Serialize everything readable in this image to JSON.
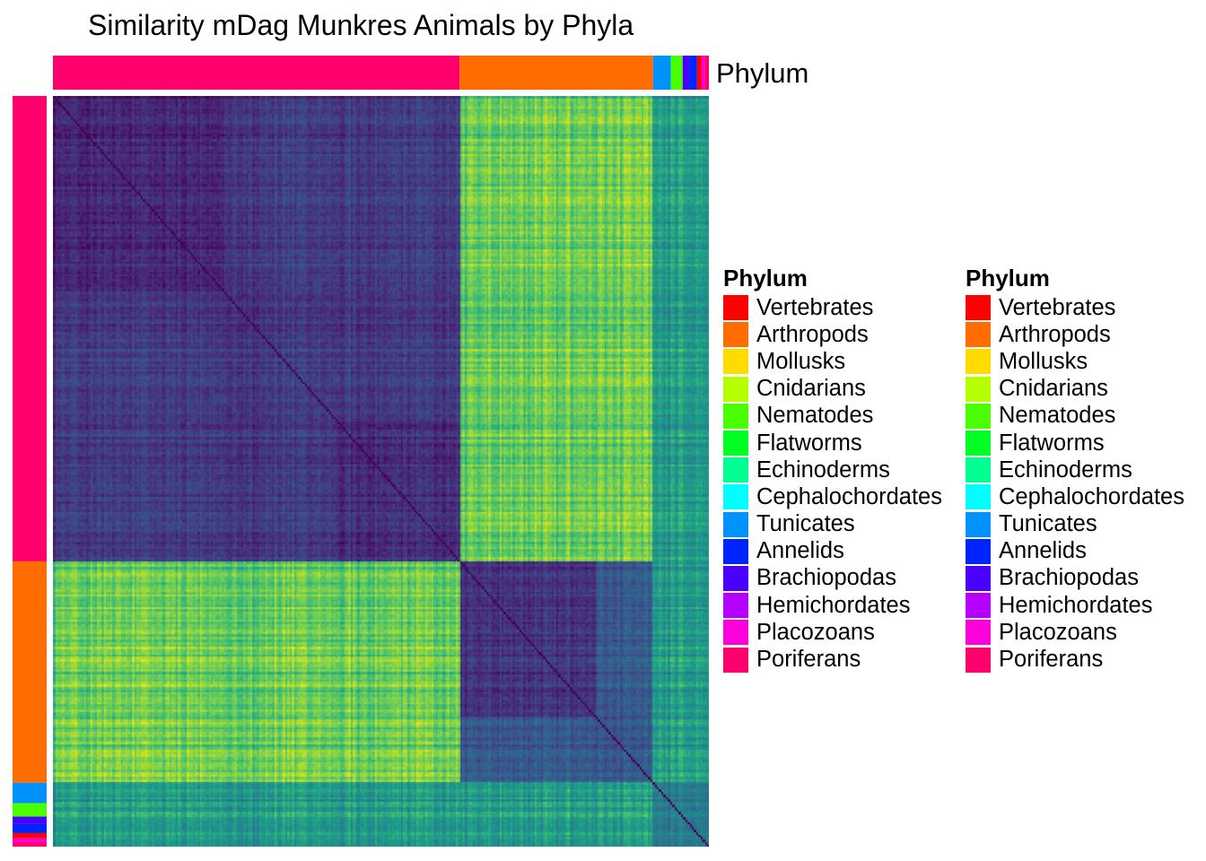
{
  "chart_data": {
    "type": "heatmap",
    "title": "Similarity mDag Munkres Animals by Phyla",
    "annotation_name": "Phylum",
    "color_scale": "viridis",
    "value_range": [
      0,
      1
    ],
    "row_order": "same as columns (symmetric similarity matrix)",
    "block_order": [
      "Poriferans",
      "Arthropods",
      "Tunicates",
      "Nematodes",
      "Brachiopodas",
      "Annelids",
      "Vertebrates",
      "Placozoans",
      "Poriferans"
    ],
    "block_sizes": [
      0.62,
      0.295,
      0.027,
      0.018,
      0.01,
      0.012,
      0.007,
      0.005,
      0.006
    ],
    "subclusters": [
      {
        "group": "Poriferans",
        "within_similarity": [
          0.05,
          0.12,
          0.08
        ]
      },
      {
        "group": "Arthropods",
        "within_similarity": [
          0.1,
          0.2
        ]
      }
    ],
    "between_similarity": {
      "Poriferans-Poriferans": 0.12,
      "Poriferans-Arthropods": 0.68,
      "Arthropods-Arthropods": 0.16,
      "minor-groups": 0.45
    },
    "legends": [
      {
        "title": "Phylum",
        "entries": [
          {
            "label": "Vertebrates",
            "color": "#FF0000"
          },
          {
            "label": "Arthropods",
            "color": "#FF6D00"
          },
          {
            "label": "Mollusks",
            "color": "#FFDB00"
          },
          {
            "label": "Cnidarians",
            "color": "#B6FF00"
          },
          {
            "label": "Nematodes",
            "color": "#49FF00"
          },
          {
            "label": "Flatworms",
            "color": "#00FF24"
          },
          {
            "label": "Echinoderms",
            "color": "#00FF92"
          },
          {
            "label": "Cephalochordates",
            "color": "#00FFFF"
          },
          {
            "label": "Tunicates",
            "color": "#0092FF"
          },
          {
            "label": "Annelids",
            "color": "#0024FF"
          },
          {
            "label": "Brachiopodas",
            "color": "#4900FF"
          },
          {
            "label": "Hemichordates",
            "color": "#B600FF"
          },
          {
            "label": "Placozoans",
            "color": "#FF00DB"
          },
          {
            "label": "Poriferans",
            "color": "#FF006D"
          }
        ]
      },
      {
        "title": "Phylum",
        "entries": [
          {
            "label": "Vertebrates",
            "color": "#FF0000"
          },
          {
            "label": "Arthropods",
            "color": "#FF6D00"
          },
          {
            "label": "Mollusks",
            "color": "#FFDB00"
          },
          {
            "label": "Cnidarians",
            "color": "#B6FF00"
          },
          {
            "label": "Nematodes",
            "color": "#49FF00"
          },
          {
            "label": "Flatworms",
            "color": "#00FF24"
          },
          {
            "label": "Echinoderms",
            "color": "#00FF92"
          },
          {
            "label": "Cephalochordates",
            "color": "#00FFFF"
          },
          {
            "label": "Tunicates",
            "color": "#0092FF"
          },
          {
            "label": "Annelids",
            "color": "#0024FF"
          },
          {
            "label": "Brachiopodas",
            "color": "#4900FF"
          },
          {
            "label": "Hemichordates",
            "color": "#B600FF"
          },
          {
            "label": "Placozoans",
            "color": "#FF00DB"
          },
          {
            "label": "Poriferans",
            "color": "#FF006D"
          }
        ]
      }
    ]
  }
}
